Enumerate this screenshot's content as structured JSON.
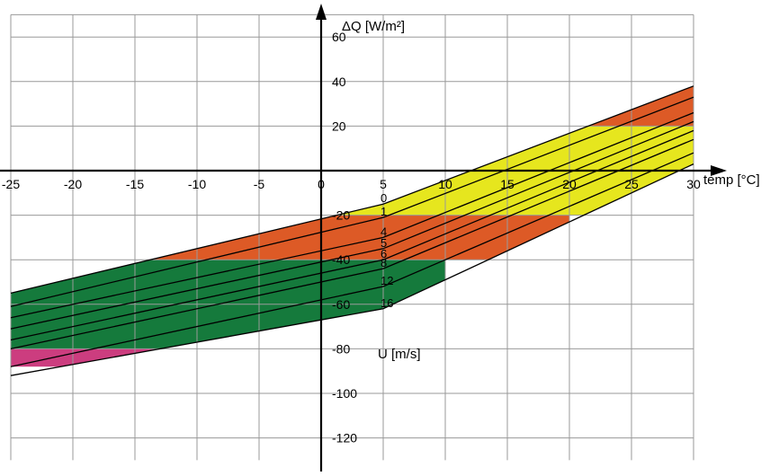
{
  "chart_data": {
    "type": "line",
    "xlabel": "temp [°C]",
    "ylabel": "ΔQ [W/m²]",
    "xlim": [
      -25,
      30
    ],
    "ylim": [
      -120,
      60
    ],
    "x_ticks": [
      -25,
      -20,
      -15,
      -10,
      -5,
      0,
      5,
      10,
      15,
      20,
      25,
      30
    ],
    "y_ticks": [
      60,
      40,
      20,
      -20,
      -40,
      -60,
      -80,
      -100,
      -120
    ],
    "grid": true,
    "series_label": "U [m/s]",
    "series": [
      {
        "name": "0",
        "x": [
          -25,
          5,
          30
        ],
        "y": [
          -55,
          -15,
          38
        ]
      },
      {
        "name": "1",
        "x": [
          -25,
          5,
          30
        ],
        "y": [
          -61,
          -21,
          33
        ]
      },
      {
        "name": "4",
        "x": [
          -25,
          5,
          30
        ],
        "y": [
          -66,
          -30,
          26
        ]
      },
      {
        "name": "5",
        "x": [
          -25,
          5,
          30
        ],
        "y": [
          -71,
          -35,
          22
        ]
      },
      {
        "name": "6",
        "x": [
          -25,
          5,
          30
        ],
        "y": [
          -76,
          -40,
          18
        ]
      },
      {
        "name": "8",
        "x": [
          -25,
          5,
          30
        ],
        "y": [
          -80,
          -44,
          14
        ]
      },
      {
        "name": "12",
        "x": [
          -25,
          5,
          30
        ],
        "y": [
          -88,
          -52,
          8
        ]
      },
      {
        "name": "16",
        "x": [
          -25,
          5,
          30
        ],
        "y": [
          -92,
          -62,
          3
        ]
      }
    ],
    "bands": [
      {
        "color": "#cc3d7f",
        "y0": -88,
        "y1": -77,
        "x0": -25,
        "x1": -10
      },
      {
        "color": "#157a3c",
        "y0": -80,
        "y1": -40,
        "x0": -25,
        "x1": 10
      },
      {
        "color": "#dd5a26",
        "y0": -40,
        "y1": -20,
        "x0": -25,
        "x1": 20
      },
      {
        "color": "#e6e61e",
        "y0": -20,
        "y1": 20,
        "x0": -25,
        "x1": 30
      },
      {
        "color": "#dd5a26",
        "y0": 20,
        "y1": 40,
        "x0": 20,
        "x1": 30
      }
    ],
    "colors": {
      "magenta": "#cc3d7f",
      "green": "#157a3c",
      "red": "#dd5a26",
      "yellow": "#e6e61e"
    }
  }
}
